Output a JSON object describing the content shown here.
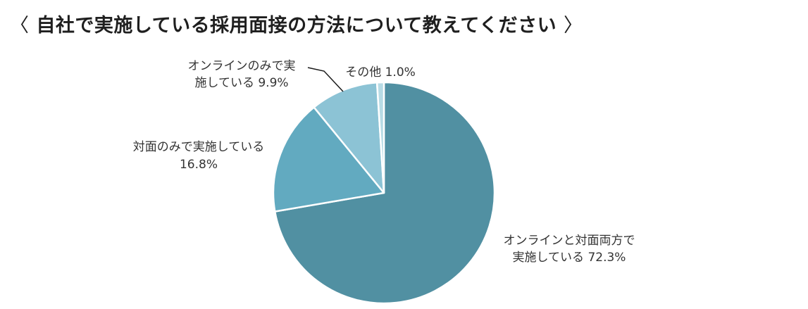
{
  "title": {
    "open_bracket": "〈",
    "text": "自社で実施している採用面接の方法について教えてください",
    "close_bracket": "〉"
  },
  "chart_data": {
    "type": "pie",
    "title": "〈 自社で実施している採用面接の方法について教えてください 〉",
    "slices": [
      {
        "label_lines": [
          "オンラインと対面両方で",
          "実施している 72.3%"
        ],
        "value": 72.3,
        "color": "#5190A2"
      },
      {
        "label_lines": [
          "対面のみで実施している",
          "16.8%"
        ],
        "value": 16.8,
        "color": "#62AAC0"
      },
      {
        "label_lines": [
          "オンラインのみで実",
          "施している 9.9%"
        ],
        "value": 9.9,
        "color": "#8CC3D5"
      },
      {
        "label_lines": [
          "その他 1.0%"
        ],
        "value": 1.0,
        "color": "#B7DBE5"
      }
    ],
    "start_angle_deg": 0,
    "direction": "clockwise",
    "legend": "none",
    "labels": "outside"
  }
}
